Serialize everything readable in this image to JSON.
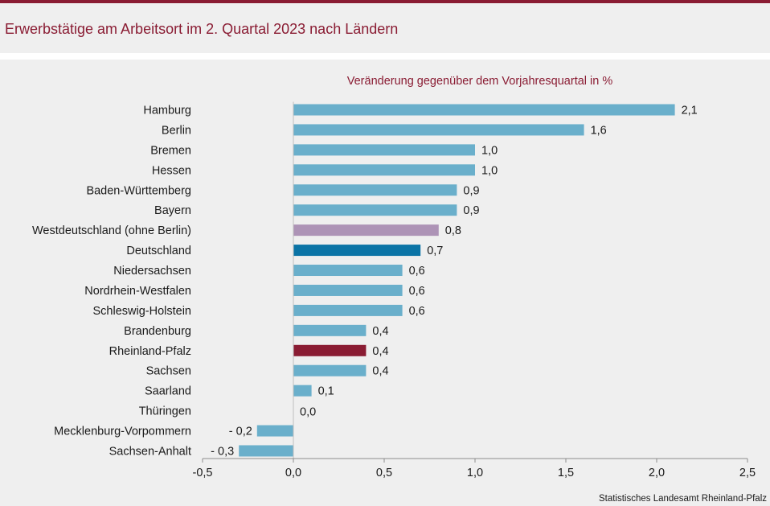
{
  "title": "Erwerbstätige am Arbeitsort im 2. Quartal 2023 nach Ländern",
  "source": "Statistisches Landesamt Rheinland-Pfalz",
  "colors": {
    "brand": "#8a1c33",
    "bar_default": "#6aafcb",
    "bar_west": "#ad93b6",
    "bar_germany": "#0b74a6",
    "bar_rlp": "#8a1c33"
  },
  "chart_data": {
    "type": "bar",
    "orientation": "horizontal",
    "title": "Veränderung gegenüber dem Vorjahresquartal in %",
    "categories": [
      "Hamburg",
      "Berlin",
      "Bremen",
      "Hessen",
      "Baden-Württemberg",
      "Bayern",
      "Westdeutschland (ohne Berlin)",
      "Deutschland",
      "Niedersachsen",
      "Nordrhein-Westfalen",
      "Schleswig-Holstein",
      "Brandenburg",
      "Rheinland-Pfalz",
      "Sachsen",
      "Saarland",
      "Thüringen",
      "Mecklenburg-Vorpommern",
      "Sachsen-Anhalt"
    ],
    "values": [
      2.1,
      1.6,
      1.0,
      1.0,
      0.9,
      0.9,
      0.8,
      0.7,
      0.6,
      0.6,
      0.6,
      0.4,
      0.4,
      0.4,
      0.1,
      0.0,
      -0.2,
      -0.3
    ],
    "value_labels": [
      "2,1",
      "1,6",
      "1,0",
      "1,0",
      "0,9",
      "0,9",
      "0,8",
      "0,7",
      "0,6",
      "0,6",
      "0,6",
      "0,4",
      "0,4",
      "0,4",
      "0,1",
      "0,0",
      "- 0,2",
      "- 0,3"
    ],
    "highlight": {
      "Westdeutschland (ohne Berlin)": "bar_west",
      "Deutschland": "bar_germany",
      "Rheinland-Pfalz": "bar_rlp"
    },
    "xlim": [
      -0.5,
      2.5
    ],
    "xticks": [
      -0.5,
      0.0,
      0.5,
      1.0,
      1.5,
      2.0,
      2.5
    ],
    "xtick_labels": [
      "-0,5",
      "0,0",
      "0,5",
      "1,0",
      "1,5",
      "2,0",
      "2,5"
    ],
    "grid": false
  }
}
